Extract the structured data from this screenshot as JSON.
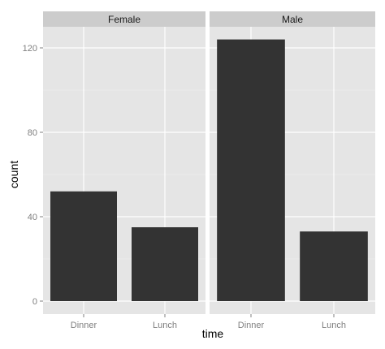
{
  "chart_data": {
    "type": "bar",
    "xlabel": "time",
    "ylabel": "count",
    "ylim": [
      0,
      130
    ],
    "yticks": [
      0,
      40,
      80,
      120
    ],
    "grid": true,
    "categories": [
      "Dinner",
      "Lunch"
    ],
    "facets": [
      {
        "label": "Female",
        "values": [
          52,
          35
        ]
      },
      {
        "label": "Male",
        "values": [
          124,
          33
        ]
      }
    ],
    "colors": {
      "bar": "#333333",
      "panel": "#e5e5e5",
      "strip": "#cccccc",
      "grid_major": "#ffffff",
      "grid_minor": "#f2f2f2"
    }
  }
}
